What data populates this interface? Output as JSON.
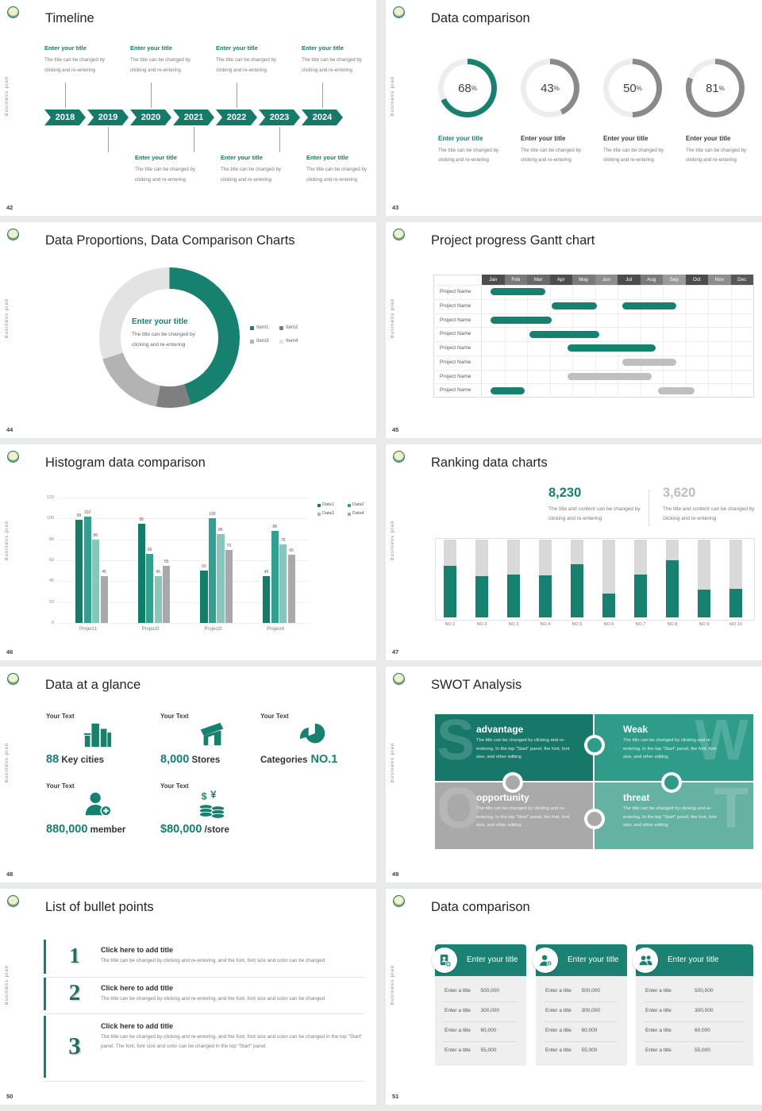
{
  "page": {
    "background": "#e9eaea",
    "accent_green": "#15816e",
    "gray": "#a9a9a9"
  },
  "common": {
    "vertical_label": "Business plan",
    "logo": "school-crest-logo"
  },
  "slides": {
    "timeline": {
      "number": "42",
      "title": "Timeline",
      "years": [
        "2018",
        "2019",
        "2020",
        "2021",
        "2022",
        "2023",
        "2024"
      ],
      "entry_title": "Enter your title",
      "entry_desc": "The title can be changed by clicking and re-entering",
      "top_entry_year_indexes": [
        0,
        2,
        4,
        6
      ],
      "bottom_entry_year_indexes": [
        1,
        3,
        5
      ]
    },
    "rings": {
      "number": "43",
      "title": "Data comparison",
      "item_title": "Enter your title",
      "item_desc": "The title can be changed by clicking and re-entering",
      "chart_data": {
        "type": "donut-progress",
        "values": [
          68,
          43,
          50,
          81
        ],
        "unit": "%",
        "highlight_index": 0,
        "highlight_color": "#15816e",
        "other_color": "#8a8a8a",
        "track_color": "#ededed"
      }
    },
    "donut": {
      "number": "44",
      "title": "Data Proportions, Data Comparison Charts",
      "center_title": "Enter your title",
      "center_desc": "The title can be changed by clicking and re-entering",
      "chart_data": {
        "type": "pie",
        "labels": [
          "Item1",
          "Item2",
          "Item3",
          "Item4"
        ],
        "values": [
          45,
          8,
          17,
          30
        ],
        "colors": [
          "#15816e",
          "#7f7f7f",
          "#b3b3b3",
          "#e3e3e3"
        ],
        "legend_position": "right"
      }
    },
    "gantt": {
      "number": "45",
      "title": "Project progress Gantt chart",
      "row_label": "Project Name",
      "row_count": 8,
      "months": [
        "Jan",
        "Feb",
        "Mar",
        "Apr",
        "May",
        "Jun",
        "Jul",
        "Aug",
        "Sep",
        "Oct",
        "Nov",
        "Dec"
      ],
      "month_colors": [
        "#4d4d4d",
        "#7a7a7a",
        "#696969",
        "#4d4d4d",
        "#7a7a7a",
        "#8d8d8d",
        "#4d4d4d",
        "#7a7a7a",
        "#9b9b9b",
        "#4d4d4d",
        "#8d8d8d",
        "#575757"
      ],
      "chart_data": {
        "type": "gantt",
        "bar_colors": {
          "green": "#15816e",
          "gray": "#bfbfbf"
        },
        "bars": [
          {
            "row": 0,
            "start": 0.4,
            "end": 2.8,
            "color": "green"
          },
          {
            "row": 1,
            "start": 3.1,
            "end": 5.1,
            "color": "green"
          },
          {
            "row": 1,
            "start": 6.2,
            "end": 8.6,
            "color": "green"
          },
          {
            "row": 2,
            "start": 0.4,
            "end": 3.1,
            "color": "green"
          },
          {
            "row": 3,
            "start": 2.1,
            "end": 5.2,
            "color": "green"
          },
          {
            "row": 4,
            "start": 3.8,
            "end": 7.7,
            "color": "green"
          },
          {
            "row": 5,
            "start": 6.2,
            "end": 8.6,
            "color": "gray"
          },
          {
            "row": 6,
            "start": 3.8,
            "end": 7.5,
            "color": "gray"
          },
          {
            "row": 7,
            "start": 0.4,
            "end": 1.9,
            "color": "green"
          },
          {
            "row": 7,
            "start": 7.8,
            "end": 9.4,
            "color": "gray"
          }
        ]
      }
    },
    "histogram": {
      "number": "46",
      "title": "Histogram data comparison",
      "chart_data": {
        "type": "bar",
        "categories": [
          "Project1",
          "Project2",
          "Project3",
          "Project4"
        ],
        "series": [
          {
            "name": "Data1",
            "color": "#0f7f6a",
            "values": [
              99,
              95,
              50,
              45
            ]
          },
          {
            "name": "Data2",
            "color": "#31a08e",
            "values": [
              102,
              66,
              100,
              88
            ]
          },
          {
            "name": "Data3",
            "color": "#86c7ba",
            "values": [
              80,
              45,
              85,
              75
            ]
          },
          {
            "name": "Data4",
            "color": "#a9a9a9",
            "values": [
              45,
              55,
              70,
              65
            ]
          }
        ],
        "ylim": [
          0,
          120
        ],
        "yticks": [
          0,
          20,
          40,
          60,
          80,
          100,
          120
        ],
        "grid": true,
        "legend_position": "top-right"
      }
    },
    "ranking": {
      "number": "47",
      "title": "Ranking data charts",
      "stat1": {
        "value": "8,230",
        "desc": "The title and content can be changed by clicking and re-entering",
        "color": "#15816e"
      },
      "stat2": {
        "value": "3,620",
        "desc": "The title and content can be changed by clicking and re-entering",
        "color": "#bdbdbd"
      },
      "chart_data": {
        "type": "bar",
        "categories": [
          "NO.1",
          "NO.2",
          "NO.3",
          "NO.4",
          "NO.5",
          "NO.6",
          "NO.7",
          "NO.8",
          "NO.9",
          "NO.10"
        ],
        "values_pct": [
          66,
          53,
          55,
          54,
          68,
          31,
          55,
          73,
          36,
          37
        ],
        "bar_color": "#15816e",
        "track_color": "#d9d9d9"
      }
    },
    "glance": {
      "number": "48",
      "title": "Data at a glance",
      "blocks": [
        {
          "label": "Your Text",
          "icon": "city-buildings-icon",
          "parts": [
            {
              "t": "88",
              "k": "num"
            },
            {
              "t": " Key cities",
              "k": "txt"
            }
          ]
        },
        {
          "label": "Your Text",
          "icon": "store-icon",
          "parts": [
            {
              "t": "8,000",
              "k": "num"
            },
            {
              "t": " Stores",
              "k": "txt"
            }
          ]
        },
        {
          "label": "Your Text",
          "icon": "pie-chart-icon",
          "parts": [
            {
              "t": "Categories",
              "k": "txt"
            },
            {
              "t": " NO.1",
              "k": "num"
            }
          ]
        },
        {
          "label": "Your Text",
          "icon": "member-add-icon",
          "parts": [
            {
              "t": "880,000",
              "k": "num"
            },
            {
              "t": " member",
              "k": "txt"
            }
          ]
        },
        {
          "label": "Your Text",
          "icon": "coins-icon",
          "parts": [
            {
              "t": "$80,000",
              "k": "num"
            },
            {
              "t": " /store",
              "k": "txt"
            }
          ]
        }
      ]
    },
    "swot": {
      "number": "49",
      "title": "SWOT Analysis",
      "body": "The title can be changed by clicking and re-entering. In the top \"Start\" panel, the font, font size, and other editing",
      "pieces": [
        {
          "letter": "S",
          "word": "advantage",
          "color": "#17786a",
          "letter_side": "left"
        },
        {
          "letter": "W",
          "word": "Weak",
          "color": "#2f9c8a",
          "letter_side": "right"
        },
        {
          "letter": "O",
          "word": "opportunity",
          "color": "#a9a9a9",
          "letter_side": "left"
        },
        {
          "letter": "T",
          "word": "threat",
          "color": "#66b2a2",
          "letter_side": "right"
        }
      ]
    },
    "bullets": {
      "number": "50",
      "title": "List of bullet points",
      "items": [
        {
          "num": "1",
          "title": "Click here to add title",
          "body": "The title can be changed by clicking and re-entering, and the font, font size and color can be changed"
        },
        {
          "num": "2",
          "title": "Click here to add title",
          "body": "The title can be changed by clicking and re-entering, and the font, font size and color can be changed"
        },
        {
          "num": "3",
          "title": "Click here to add title",
          "body": "The title can be changed by clicking and re-entering, and the font, font size and color can be changed in the top \"Start\" panel. The font, font size and color can be changed in the top \"Start\" panel."
        }
      ]
    },
    "cards": {
      "number": "51",
      "title": "Data comparison",
      "card_title": "Enter your title",
      "row_label": "Enter a title",
      "row_values": [
        "500,000",
        "300,000",
        "60,000",
        "55,000"
      ],
      "icons": [
        "id-card-plus-icon",
        "person-plus-icon",
        "people-icon"
      ]
    }
  }
}
